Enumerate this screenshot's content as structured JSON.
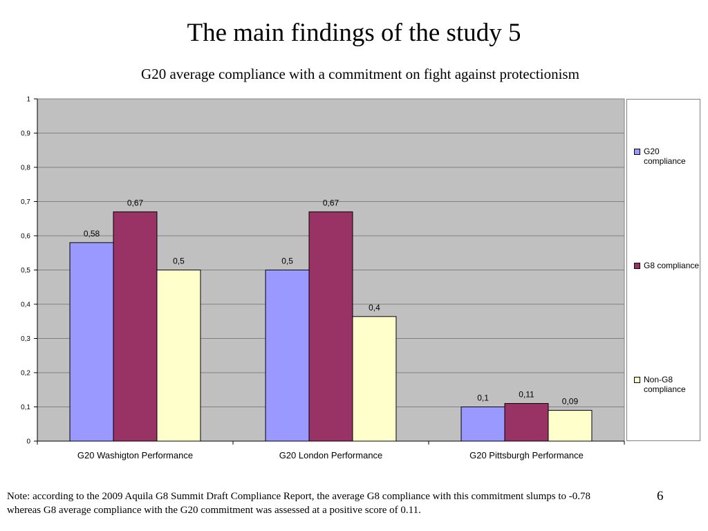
{
  "slide": {
    "title": "The main findings of the study 5",
    "page_number": "6"
  },
  "note": {
    "line1": "Note: according to the 2009 Aquila G8 Summit Draft Compliance Report, the average G8 compliance with this commitment slumps to  -0.78",
    "line2": "whereas G8 average compliance with the G20 commitment was assessed at a positive score of 0.11."
  },
  "chart_data": {
    "type": "bar",
    "title": "G20 average compliance with a commitment on fight against protectionism",
    "xlabel": "",
    "ylabel": "",
    "ylim": [
      0,
      1
    ],
    "yticks": [
      "0",
      "0,1",
      "0,2",
      "0,3",
      "0,4",
      "0,5",
      "0,6",
      "0,7",
      "0,8",
      "0,9",
      "1"
    ],
    "grid": true,
    "legend_position": "right",
    "categories": [
      "G20 Washigton Performance",
      "G20 London Performance",
      "G20 Pittsburgh Performance"
    ],
    "series": [
      {
        "name": "G20 compliance",
        "color": "#9999ff",
        "values": [
          0.58,
          0.5,
          0.1
        ],
        "labels": [
          "0,58",
          "0,5",
          "0,1"
        ]
      },
      {
        "name": "G8 compliance",
        "color": "#993366",
        "values": [
          0.67,
          0.67,
          0.11
        ],
        "labels": [
          "0,67",
          "0,67",
          "0,11"
        ]
      },
      {
        "name": "Non-G8 compliance",
        "color": "#ffffcc",
        "values": [
          0.5,
          0.364,
          0.09
        ],
        "labels": [
          "0,5",
          "0,4",
          "0,09"
        ]
      }
    ],
    "plot_background": "#c0c0c0"
  }
}
